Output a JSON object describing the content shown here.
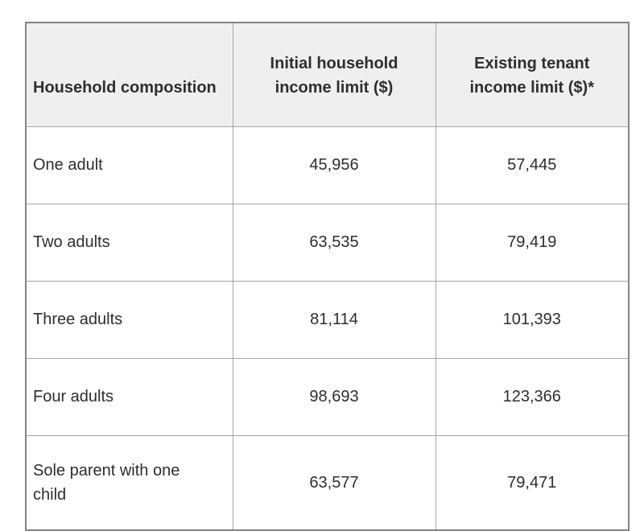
{
  "table": {
    "header": {
      "col1": "Household composition",
      "col2_line1": "Initial household",
      "col2_line2": "income limit ($)",
      "col3_line1": "Existing tenant",
      "col3_line2": "income limit ($)*"
    },
    "rows": [
      {
        "label": "One adult",
        "initial": "45,956",
        "existing": "57,445"
      },
      {
        "label": "Two adults",
        "initial": "63,535",
        "existing": "79,419"
      },
      {
        "label": "Three adults",
        "initial": "81,114",
        "existing": "101,393"
      },
      {
        "label": "Four adults",
        "initial": "98,693",
        "existing": "123,366"
      },
      {
        "label": "Sole parent with one child",
        "initial": "63,577",
        "existing": "79,471"
      }
    ]
  },
  "colors": {
    "header_background": "#efefef",
    "row_background": "#ffffff",
    "outer_border": "#848484",
    "inner_border": "#a6a6a6",
    "text": "#2e2e2e"
  }
}
